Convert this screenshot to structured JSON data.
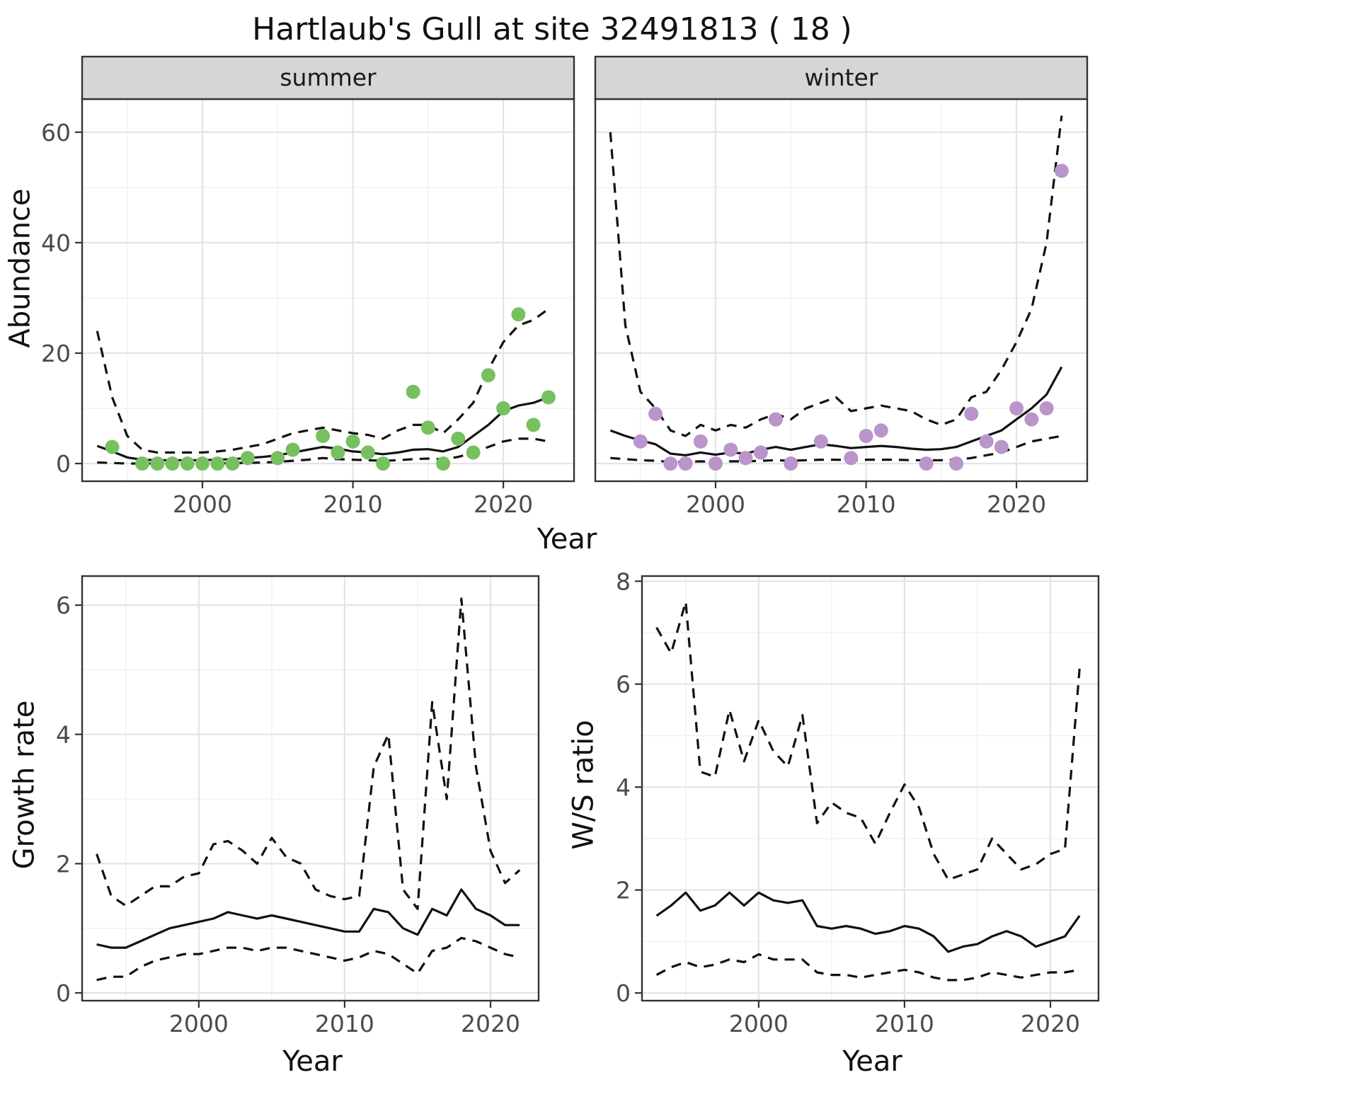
{
  "title": "Hartlaub's Gull at site 32491813 ( 18 )",
  "axis_titles": {
    "abundance": "Abundance",
    "year": "Year",
    "growth_rate": "Growth rate",
    "ws_ratio": "W/S ratio"
  },
  "colors": {
    "line": "#111111",
    "grid_major": "#e4e4e4",
    "grid_minor": "#f1f1f1",
    "panel_border": "#333333",
    "strip_bg": "#d6d6d6",
    "strip_text": "#1a1a1a",
    "tick_text": "#4a4a4a",
    "summer_point": "#77c05f",
    "winter_point": "#b995cb"
  },
  "chart_data": [
    {
      "id": "summer-abundance",
      "type": "line",
      "facet_label": "summer",
      "xlabel": "Year",
      "ylabel": "Abundance",
      "xlim": [
        1992,
        2024.7
      ],
      "ylim": [
        -3.2,
        66
      ],
      "xticks": [
        2000,
        2010,
        2020
      ],
      "yticks": [
        0,
        20,
        40,
        60
      ],
      "show_y_axis": true,
      "point_color": "#77c05f",
      "x": [
        1993,
        1994,
        1995,
        1996,
        1997,
        1998,
        1999,
        2000,
        2001,
        2002,
        2003,
        2004,
        2005,
        2006,
        2007,
        2008,
        2009,
        2010,
        2011,
        2012,
        2013,
        2014,
        2015,
        2016,
        2017,
        2018,
        2019,
        2020,
        2021,
        2022,
        2023
      ],
      "series": [
        {
          "name": "fit",
          "style": "solid",
          "values": [
            3.2,
            2.2,
            1.1,
            0.7,
            0.6,
            0.6,
            0.6,
            0.6,
            0.7,
            0.8,
            1.0,
            1.2,
            1.5,
            2.0,
            2.5,
            3.0,
            2.7,
            2.2,
            2.0,
            1.7,
            2.0,
            2.5,
            2.6,
            2.2,
            3.0,
            5.0,
            7.0,
            9.5,
            10.5,
            11.0,
            12.0
          ]
        },
        {
          "name": "upper_ci",
          "style": "dashed",
          "values": [
            24,
            12,
            5,
            2.5,
            2,
            2,
            2,
            2,
            2.2,
            2.5,
            3,
            3.5,
            4.5,
            5.5,
            6,
            6.5,
            6,
            5.5,
            5.2,
            4.5,
            6,
            7,
            7,
            5.5,
            8,
            11,
            17,
            22,
            25,
            26,
            28
          ]
        },
        {
          "name": "lower_ci",
          "style": "dashed",
          "values": [
            0.2,
            0.1,
            0,
            0,
            0,
            0,
            0,
            0,
            0,
            0.1,
            0.1,
            0.2,
            0.3,
            0.5,
            0.7,
            1.0,
            0.8,
            0.7,
            0.6,
            0.5,
            0.6,
            0.8,
            0.9,
            0.8,
            1.2,
            2.0,
            3.0,
            4.0,
            4.5,
            4.5,
            4.0
          ]
        }
      ],
      "points": {
        "x": [
          1994,
          1996,
          1997,
          1998,
          1999,
          2000,
          2001,
          2002,
          2003,
          2005,
          2006,
          2008,
          2009,
          2010,
          2011,
          2012,
          2014,
          2015,
          2016,
          2017,
          2018,
          2019,
          2020,
          2021,
          2022,
          2023
        ],
        "y": [
          3,
          0,
          0,
          0,
          0,
          0,
          0,
          0,
          1,
          1,
          2.5,
          5,
          2,
          4,
          2,
          0,
          13,
          6.5,
          0,
          4.5,
          2,
          16,
          10,
          27,
          7,
          12
        ]
      }
    },
    {
      "id": "winter-abundance",
      "type": "line",
      "facet_label": "winter",
      "xlabel": "Year",
      "ylabel": "Abundance",
      "xlim": [
        1992,
        2024.7
      ],
      "ylim": [
        -3.2,
        66
      ],
      "xticks": [
        2000,
        2010,
        2020
      ],
      "yticks": [
        0,
        20,
        40,
        60
      ],
      "show_y_axis": false,
      "point_color": "#b995cb",
      "x": [
        1993,
        1994,
        1995,
        1996,
        1997,
        1998,
        1999,
        2000,
        2001,
        2002,
        2003,
        2004,
        2005,
        2006,
        2007,
        2008,
        2009,
        2010,
        2011,
        2012,
        2013,
        2014,
        2015,
        2016,
        2017,
        2018,
        2019,
        2020,
        2021,
        2022,
        2023
      ],
      "series": [
        {
          "name": "fit",
          "style": "solid",
          "values": [
            6.0,
            5.0,
            4.2,
            3.5,
            1.8,
            1.5,
            2.0,
            1.6,
            2.0,
            1.8,
            2.5,
            3.0,
            2.5,
            3.0,
            3.5,
            3.2,
            2.8,
            3.0,
            3.2,
            3.0,
            2.7,
            2.5,
            2.6,
            3.0,
            4.0,
            5.0,
            6.0,
            8.0,
            10.0,
            12.5,
            17.5
          ]
        },
        {
          "name": "upper_ci",
          "style": "dashed",
          "values": [
            60,
            25,
            13,
            10,
            6,
            5,
            7,
            6,
            7,
            6.5,
            8,
            9,
            8,
            10,
            11,
            12,
            9.5,
            10,
            10.5,
            10,
            9.5,
            8,
            7,
            8,
            12,
            13,
            17,
            22,
            28,
            40,
            63
          ]
        },
        {
          "name": "lower_ci",
          "style": "dashed",
          "values": [
            1.0,
            0.8,
            0.6,
            0.5,
            0.3,
            0.3,
            0.4,
            0.3,
            0.4,
            0.4,
            0.5,
            0.6,
            0.5,
            0.6,
            0.7,
            0.7,
            0.6,
            0.7,
            0.7,
            0.7,
            0.6,
            0.6,
            0.6,
            0.7,
            1.0,
            1.5,
            2.0,
            3.0,
            4.0,
            4.5,
            5.0
          ]
        }
      ],
      "points": {
        "x": [
          1995,
          1996,
          1997,
          1998,
          1999,
          2000,
          2001,
          2002,
          2003,
          2004,
          2005,
          2007,
          2009,
          2010,
          2011,
          2014,
          2016,
          2017,
          2018,
          2019,
          2020,
          2021,
          2022,
          2023
        ],
        "y": [
          4,
          9,
          0,
          0,
          4,
          0,
          2.5,
          1,
          2,
          8,
          0,
          4,
          1,
          5,
          6,
          0,
          0,
          9,
          4,
          3,
          10,
          8,
          10,
          53
        ]
      }
    },
    {
      "id": "growth-rate",
      "type": "line",
      "facet_label": null,
      "xlabel": "Year",
      "ylabel": "Growth rate",
      "xlim": [
        1992,
        2023.3
      ],
      "ylim": [
        -0.12,
        6.45
      ],
      "xticks": [
        2000,
        2010,
        2020
      ],
      "yticks": [
        0,
        2,
        4,
        6
      ],
      "show_y_axis": true,
      "point_color": null,
      "x": [
        1993,
        1994,
        1995,
        1996,
        1997,
        1998,
        1999,
        2000,
        2001,
        2002,
        2003,
        2004,
        2005,
        2006,
        2007,
        2008,
        2009,
        2010,
        2011,
        2012,
        2013,
        2014,
        2015,
        2016,
        2017,
        2018,
        2019,
        2020,
        2021,
        2022
      ],
      "series": [
        {
          "name": "fit",
          "style": "solid",
          "values": [
            0.75,
            0.7,
            0.7,
            0.8,
            0.9,
            1.0,
            1.05,
            1.1,
            1.15,
            1.25,
            1.2,
            1.15,
            1.2,
            1.15,
            1.1,
            1.05,
            1.0,
            0.95,
            0.95,
            1.3,
            1.25,
            1.0,
            0.9,
            1.3,
            1.2,
            1.6,
            1.3,
            1.2,
            1.05,
            1.05
          ]
        },
        {
          "name": "upper_ci",
          "style": "dashed",
          "values": [
            2.15,
            1.5,
            1.35,
            1.5,
            1.65,
            1.65,
            1.8,
            1.85,
            2.3,
            2.35,
            2.2,
            2.0,
            2.4,
            2.1,
            2.0,
            1.6,
            1.5,
            1.45,
            1.5,
            3.5,
            4.0,
            1.6,
            1.3,
            4.5,
            3.0,
            6.1,
            3.5,
            2.2,
            1.7,
            1.9
          ]
        },
        {
          "name": "lower_ci",
          "style": "dashed",
          "values": [
            0.2,
            0.25,
            0.25,
            0.4,
            0.5,
            0.55,
            0.6,
            0.6,
            0.65,
            0.7,
            0.7,
            0.65,
            0.7,
            0.7,
            0.65,
            0.6,
            0.55,
            0.5,
            0.55,
            0.65,
            0.6,
            0.45,
            0.3,
            0.65,
            0.7,
            0.85,
            0.8,
            0.7,
            0.6,
            0.55
          ]
        }
      ],
      "points": null
    },
    {
      "id": "ws-ratio",
      "type": "line",
      "facet_label": null,
      "xlabel": "Year",
      "ylabel": "W/S ratio",
      "xlim": [
        1992,
        2023.3
      ],
      "ylim": [
        -0.15,
        8.1
      ],
      "xticks": [
        2000,
        2010,
        2020
      ],
      "yticks": [
        0,
        2,
        4,
        6,
        8
      ],
      "show_y_axis": true,
      "point_color": null,
      "x": [
        1993,
        1994,
        1995,
        1996,
        1997,
        1998,
        1999,
        2000,
        2001,
        2002,
        2003,
        2004,
        2005,
        2006,
        2007,
        2008,
        2009,
        2010,
        2011,
        2012,
        2013,
        2014,
        2015,
        2016,
        2017,
        2018,
        2019,
        2020,
        2021,
        2022
      ],
      "series": [
        {
          "name": "fit",
          "style": "solid",
          "values": [
            1.5,
            1.7,
            1.95,
            1.6,
            1.7,
            1.95,
            1.7,
            1.95,
            1.8,
            1.75,
            1.8,
            1.3,
            1.25,
            1.3,
            1.25,
            1.15,
            1.2,
            1.3,
            1.25,
            1.1,
            0.8,
            0.9,
            0.95,
            1.1,
            1.2,
            1.1,
            0.9,
            1.0,
            1.1,
            1.5
          ]
        },
        {
          "name": "upper_ci",
          "style": "dashed",
          "values": [
            7.1,
            6.6,
            7.6,
            4.3,
            4.2,
            5.5,
            4.5,
            5.3,
            4.7,
            4.4,
            5.4,
            3.3,
            3.7,
            3.5,
            3.4,
            2.9,
            3.5,
            4.05,
            3.6,
            2.7,
            2.2,
            2.3,
            2.4,
            3.0,
            2.7,
            2.4,
            2.5,
            2.7,
            2.8,
            6.3
          ]
        },
        {
          "name": "lower_ci",
          "style": "dashed",
          "values": [
            0.35,
            0.5,
            0.6,
            0.5,
            0.55,
            0.65,
            0.6,
            0.75,
            0.65,
            0.65,
            0.65,
            0.4,
            0.35,
            0.35,
            0.3,
            0.35,
            0.4,
            0.45,
            0.4,
            0.3,
            0.25,
            0.25,
            0.3,
            0.4,
            0.35,
            0.3,
            0.35,
            0.4,
            0.4,
            0.45
          ]
        }
      ],
      "points": null
    }
  ]
}
